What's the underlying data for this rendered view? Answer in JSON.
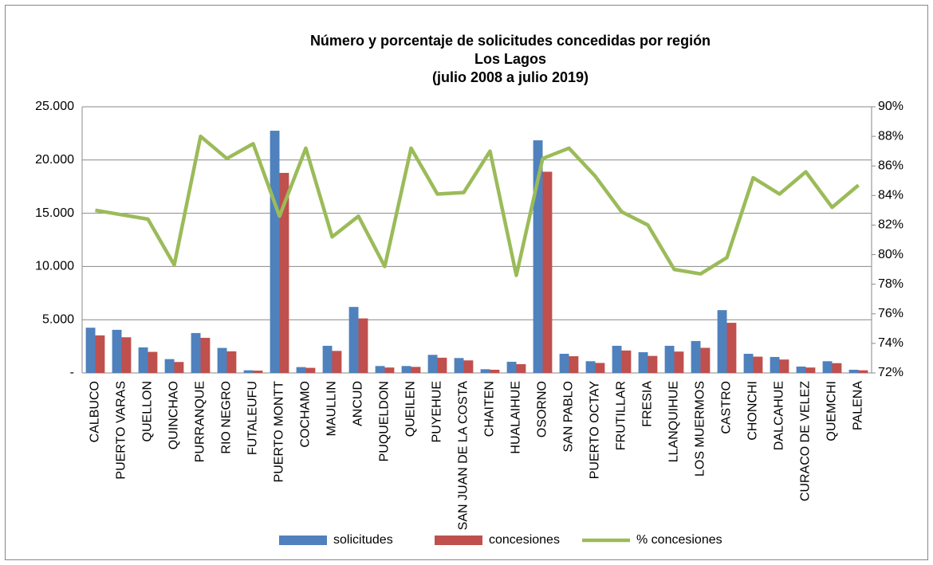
{
  "chart_data": {
    "type": "bar_line",
    "title": [
      "Número y porcentaje de solicitudes concedidas por región",
      "Los Lagos",
      "(julio 2008 a julio 2019)"
    ],
    "categories": [
      "CALBUCO",
      "PUERTO VARAS",
      "QUELLON",
      "QUINCHAO",
      "PURRANQUE",
      "RIO NEGRO",
      "FUTALEUFU",
      "PUERTO MONTT",
      "COCHAMO",
      "MAULLIN",
      "ANCUD",
      "PUQUELDON",
      "QUEILEN",
      "PUYEHUE",
      "SAN JUAN DE LA COSTA",
      "CHAITEN",
      "HUALAIHUE",
      "OSORNO",
      "SAN PABLO",
      "PUERTO OCTAY",
      "FRUTILLAR",
      "FRESIA",
      "LLANQUIHUE",
      "LOS MUERMOS",
      "CASTRO",
      "CHONCHI",
      "DALCAHUE",
      "CURACO DE VELEZ",
      "QUEMCHI",
      "PALENA"
    ],
    "series": [
      {
        "name": "solicitudes",
        "color": "#4f81bd",
        "type": "bar",
        "values": [
          4250,
          4050,
          2400,
          1300,
          3750,
          2350,
          250,
          22750,
          550,
          2550,
          6200,
          650,
          650,
          1700,
          1400,
          350,
          1050,
          21850,
          1800,
          1100,
          2550,
          1950,
          2550,
          3000,
          5900,
          1800,
          1500,
          600,
          1100,
          300
        ]
      },
      {
        "name": "concesiones",
        "color": "#c0504d",
        "type": "bar",
        "values": [
          3530,
          3350,
          1980,
          1030,
          3300,
          2030,
          220,
          18790,
          480,
          2070,
          5120,
          510,
          570,
          1430,
          1180,
          300,
          830,
          18900,
          1570,
          940,
          2110,
          1600,
          2010,
          2360,
          4710,
          1530,
          1260,
          510,
          920,
          250
        ]
      },
      {
        "name": "% concesiones",
        "color": "#9bbb59",
        "type": "line",
        "axis": "y2",
        "values": [
          83.0,
          82.7,
          82.4,
          79.3,
          88.0,
          86.5,
          87.5,
          82.6,
          87.2,
          81.2,
          82.6,
          79.2,
          87.2,
          84.1,
          84.2,
          87.0,
          78.6,
          86.5,
          87.2,
          85.3,
          82.9,
          82.0,
          79.0,
          78.7,
          79.8,
          85.2,
          84.1,
          85.6,
          83.2,
          84.7
        ]
      }
    ],
    "ylim": [
      0,
      25000
    ],
    "yticks": [
      {
        "value": 0,
        "label": "-"
      },
      {
        "value": 5000,
        "label": "5.000"
      },
      {
        "value": 10000,
        "label": "10.000"
      },
      {
        "value": 15000,
        "label": "15.000"
      },
      {
        "value": 20000,
        "label": "20.000"
      },
      {
        "value": 25000,
        "label": "25.000"
      }
    ],
    "y2lim": [
      72,
      90
    ],
    "y2ticks": [
      {
        "value": 72,
        "label": "72%"
      },
      {
        "value": 74,
        "label": "74%"
      },
      {
        "value": 76,
        "label": "76%"
      },
      {
        "value": 78,
        "label": "78%"
      },
      {
        "value": 80,
        "label": "80%"
      },
      {
        "value": 82,
        "label": "82%"
      },
      {
        "value": 84,
        "label": "84%"
      },
      {
        "value": 86,
        "label": "86%"
      },
      {
        "value": 88,
        "label": "88%"
      },
      {
        "value": 90,
        "label": "90%"
      }
    ],
    "grid": true,
    "legend": "bottom"
  }
}
